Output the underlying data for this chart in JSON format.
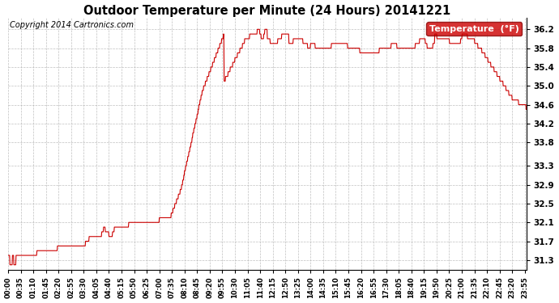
{
  "title": "Outdoor Temperature per Minute (24 Hours) 20141221",
  "copyright": "Copyright 2014 Cartronics.com",
  "legend_label": "Temperature  (°F)",
  "line_color": "#cc0000",
  "background_color": "#ffffff",
  "grid_color": "#b0b0b0",
  "ylim": [
    31.1,
    36.45
  ],
  "yticks": [
    31.3,
    31.7,
    32.1,
    32.5,
    32.9,
    33.3,
    33.8,
    34.2,
    34.6,
    35.0,
    35.4,
    35.8,
    36.2
  ],
  "x_tick_interval": 35,
  "num_points": 1440
}
